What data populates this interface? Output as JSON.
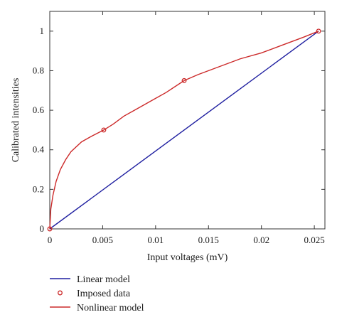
{
  "chart_data": {
    "type": "line",
    "xlabel": "Input voltages (mV)",
    "ylabel": "Calibrated intensities",
    "xlim": [
      0,
      0.026
    ],
    "ylim": [
      0,
      1.1
    ],
    "xticks": [
      0,
      0.005,
      0.01,
      0.015,
      0.02,
      0.025
    ],
    "xtick_labels": [
      "0",
      "0.005",
      "0.01",
      "0.015",
      "0.02",
      "0.025"
    ],
    "yticks": [
      0,
      0.2,
      0.4,
      0.6,
      0.8,
      1
    ],
    "ytick_labels": [
      "0",
      "0.2",
      "0.4",
      "0.6",
      "0.8",
      "1"
    ],
    "grid": false,
    "legend_position": "below",
    "series": [
      {
        "name": "Linear model",
        "kind": "line",
        "color": "#1f1fa0",
        "x": [
          0,
          0.0254
        ],
        "y": [
          0,
          1
        ]
      },
      {
        "name": "Imposed data",
        "kind": "markers",
        "marker": "open-circle",
        "color": "#cc2a2a",
        "x": [
          0,
          0.0051,
          0.0127,
          0.0254
        ],
        "y": [
          0,
          0.5,
          0.75,
          1
        ]
      },
      {
        "name": "Nonlinear model",
        "kind": "line",
        "color": "#cc2a2a",
        "x": [
          0,
          0.0001,
          0.0003,
          0.0006,
          0.001,
          0.0015,
          0.002,
          0.003,
          0.004,
          0.0051,
          0.006,
          0.007,
          0.008,
          0.009,
          0.01,
          0.011,
          0.0127,
          0.014,
          0.016,
          0.018,
          0.02,
          0.022,
          0.024,
          0.0254
        ],
        "y": [
          0,
          0.1,
          0.17,
          0.24,
          0.3,
          0.35,
          0.39,
          0.44,
          0.47,
          0.5,
          0.53,
          0.57,
          0.6,
          0.63,
          0.66,
          0.69,
          0.75,
          0.78,
          0.82,
          0.86,
          0.89,
          0.93,
          0.97,
          1
        ]
      }
    ]
  }
}
